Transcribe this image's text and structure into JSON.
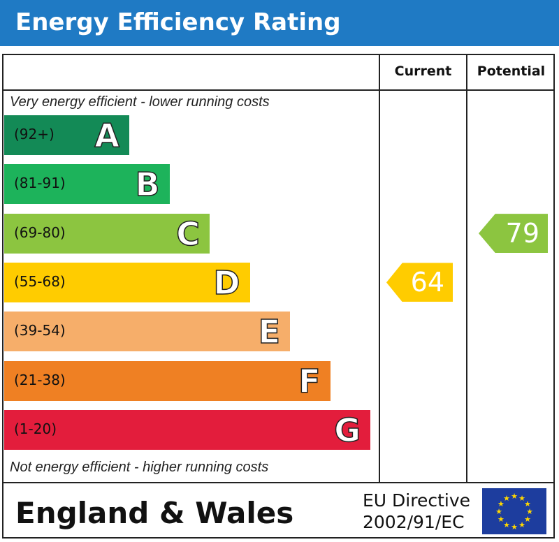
{
  "header": {
    "title": "Energy Efficiency Rating",
    "bg_color": "#1f7ac4"
  },
  "columns": {
    "current": "Current",
    "potential": "Potential"
  },
  "notes": {
    "top": "Very energy efficient - lower running costs",
    "bottom": "Not energy efficient - higher running costs"
  },
  "chart_data": {
    "type": "bar",
    "title": "Energy Efficiency Rating",
    "categories": [
      "A",
      "B",
      "C",
      "D",
      "E",
      "F",
      "G"
    ],
    "bands": [
      {
        "letter": "A",
        "range": "(92+)",
        "min": 92,
        "max": 100,
        "color": "#138a56"
      },
      {
        "letter": "B",
        "range": "(81-91)",
        "min": 81,
        "max": 91,
        "color": "#1db35b"
      },
      {
        "letter": "C",
        "range": "(69-80)",
        "min": 69,
        "max": 80,
        "color": "#8cc540"
      },
      {
        "letter": "D",
        "range": "(55-68)",
        "min": 55,
        "max": 68,
        "color": "#ffcc00"
      },
      {
        "letter": "E",
        "range": "(39-54)",
        "min": 39,
        "max": 54,
        "color": "#f6ae6a"
      },
      {
        "letter": "F",
        "range": "(21-38)",
        "min": 21,
        "max": 38,
        "color": "#ef8023"
      },
      {
        "letter": "G",
        "range": "(1-20)",
        "min": 1,
        "max": 20,
        "color": "#e31d3c"
      }
    ],
    "current": {
      "label": "Current",
      "value": 64,
      "band": "D",
      "color": "#ffcc00"
    },
    "potential": {
      "label": "Potential",
      "value": 79,
      "band": "C",
      "color": "#8cc540"
    }
  },
  "footer": {
    "region": "England & Wales",
    "directive_line1": "EU Directive",
    "directive_line2": "2002/91/EC",
    "flag_icon": "eu-flag-icon"
  }
}
